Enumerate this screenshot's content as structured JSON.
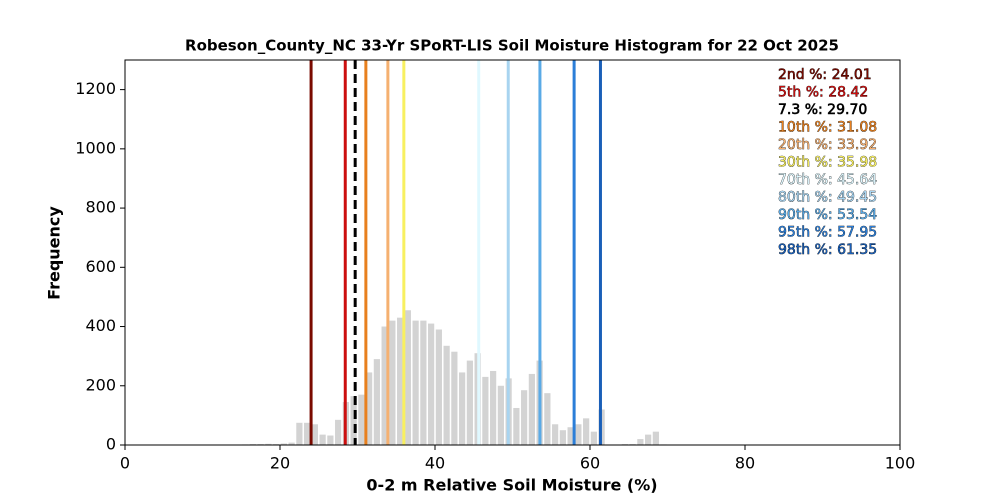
{
  "chart_data": {
    "type": "histogram",
    "title": "Robeson_County_NC 33-Yr SPoRT-LIS Soil Moisture Histogram for 22 Oct 2025",
    "x_label": "0-2 m Relative Soil Moisture (%)",
    "y_label": "Frequency",
    "bins": [
      15,
      16,
      17,
      18,
      19,
      20,
      21,
      22,
      23,
      24,
      25,
      26,
      27,
      28,
      29,
      30,
      31,
      32,
      33,
      34,
      35,
      36,
      37,
      38,
      39,
      40,
      41,
      42,
      43,
      44,
      45,
      46,
      47,
      48,
      49,
      50,
      51,
      52,
      53,
      54,
      55,
      56,
      57,
      58,
      59,
      60,
      61,
      62,
      63,
      64,
      65,
      66,
      67,
      68,
      69,
      70
    ],
    "values": [
      2,
      3,
      3,
      4,
      3,
      5,
      8,
      75,
      75,
      70,
      35,
      32,
      85,
      145,
      165,
      170,
      245,
      290,
      400,
      420,
      430,
      455,
      420,
      420,
      410,
      390,
      335,
      315,
      245,
      285,
      310,
      230,
      250,
      200,
      225,
      125,
      185,
      240,
      285,
      175,
      70,
      50,
      60,
      70,
      90,
      45,
      120,
      0,
      0,
      3,
      3,
      20,
      35,
      45,
      2
    ],
    "color": "#d3d3d3",
    "xlim": [
      0,
      100
    ],
    "xticks": [
      0,
      20,
      40,
      60,
      80,
      100
    ],
    "ylim": [
      0,
      1300
    ],
    "yticks": [
      0,
      200,
      400,
      600,
      800,
      1000,
      1200
    ],
    "grid": false,
    "lines": [
      {
        "name": "2nd %",
        "value": 24.01,
        "color": "#7a0a00",
        "label": "2nd %: 24.01",
        "dashed": false
      },
      {
        "name": "5th %",
        "value": 28.42,
        "color": "#cc0f0f",
        "label": "5th %: 28.42",
        "dashed": false
      },
      {
        "name": "7.3 %",
        "value": 29.7,
        "color": "#000000",
        "label": "7.3 %: 29.70",
        "dashed": true
      },
      {
        "name": "10th %",
        "value": 31.08,
        "color": "#e8801e",
        "label": "10th %: 31.08",
        "dashed": false
      },
      {
        "name": "20th %",
        "value": 33.92,
        "color": "#f5b070",
        "label": "20th %: 33.92",
        "dashed": false
      },
      {
        "name": "30th %",
        "value": 35.98,
        "color": "#f8f060",
        "label": "30th %: 35.98",
        "dashed": false
      },
      {
        "name": "70th %",
        "value": 45.64,
        "color": "#dff8ff",
        "label": "70th %: 45.64",
        "dashed": false
      },
      {
        "name": "80th %",
        "value": 49.45,
        "color": "#a8d4f0",
        "label": "80th %: 49.45",
        "dashed": false
      },
      {
        "name": "90th %",
        "value": 53.54,
        "color": "#5aaae6",
        "label": "90th %: 53.54",
        "dashed": false
      },
      {
        "name": "95th %",
        "value": 57.95,
        "color": "#2b7ed8",
        "label": "95th %: 57.95",
        "dashed": false
      },
      {
        "name": "98th %",
        "value": 61.35,
        "color": "#1a5fb8",
        "label": "98th %: 61.35",
        "dashed": false
      }
    ]
  }
}
